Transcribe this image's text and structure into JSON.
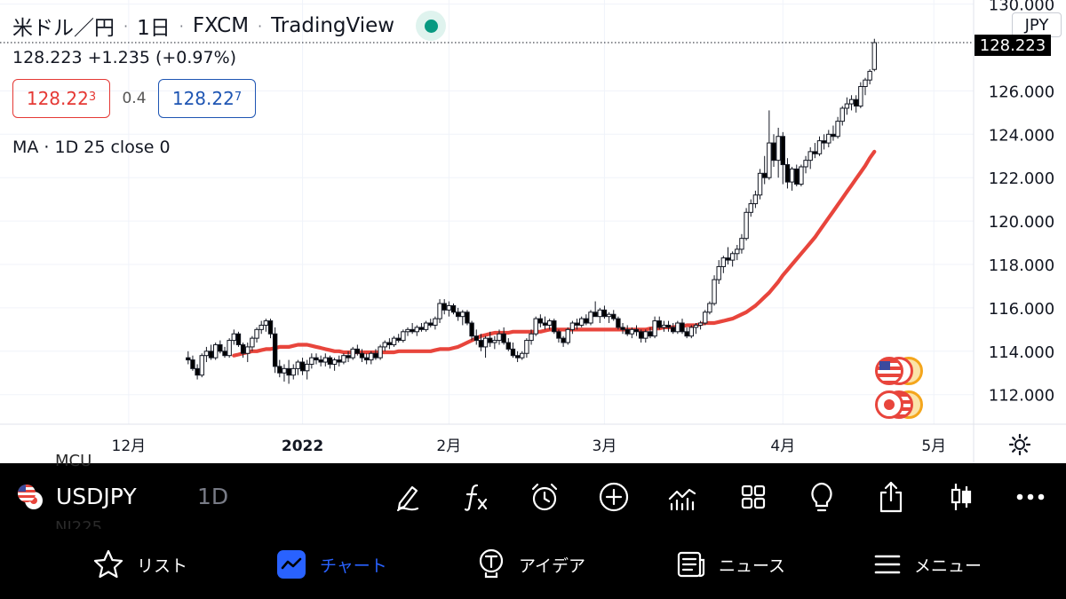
{
  "header": {
    "symbol_name": "米ドル／円",
    "interval": "1日",
    "exchange": "FXCM",
    "brand": "TradingView",
    "separator": "·",
    "price_line": "128.223  +1.235 (+0.97%)",
    "bid": {
      "main": "128.22",
      "small": "3"
    },
    "spread": "0.4",
    "ask": {
      "main": "128.22",
      "small": "7"
    },
    "ma_label": "MA · 1D 25 close 0",
    "unit": "JPY",
    "last_price_tag": "128.223"
  },
  "chart_data": {
    "type": "candlestick",
    "y_range": [
      110.6,
      130.0
    ],
    "y_ticks": [
      "130.000",
      "126.000",
      "124.000",
      "122.000",
      "120.000",
      "118.000",
      "116.000",
      "114.000",
      "112.000"
    ],
    "y_tick_values": [
      130,
      126,
      124,
      122,
      120,
      118,
      116,
      114,
      112
    ],
    "x_labels": [
      "12月",
      "2022",
      "2月",
      "3月",
      "4月",
      "5月"
    ],
    "x_label_bars": [
      27,
      65,
      97,
      131,
      170,
      203
    ],
    "last_price": 128.223,
    "bars_count": 191,
    "candles": [
      [
        113.7,
        114.0,
        113.4,
        113.6
      ],
      [
        113.6,
        113.8,
        113.1,
        113.2
      ],
      [
        113.2,
        113.4,
        112.7,
        112.9
      ],
      [
        112.9,
        113.9,
        112.8,
        113.8
      ],
      [
        113.8,
        114.2,
        113.5,
        114.0
      ],
      [
        114.0,
        114.3,
        113.6,
        113.7
      ],
      [
        113.7,
        114.4,
        113.6,
        114.3
      ],
      [
        114.3,
        114.5,
        113.9,
        114.0
      ],
      [
        114.0,
        114.2,
        113.7,
        113.8
      ],
      [
        113.8,
        114.6,
        113.7,
        114.5
      ],
      [
        114.5,
        115.0,
        114.3,
        114.8
      ],
      [
        114.8,
        114.9,
        114.2,
        114.3
      ],
      [
        114.3,
        114.4,
        113.7,
        113.9
      ],
      [
        113.9,
        114.4,
        113.5,
        114.2
      ],
      [
        114.2,
        114.7,
        114.0,
        114.6
      ],
      [
        114.6,
        115.1,
        114.4,
        115.0
      ],
      [
        115.0,
        115.4,
        114.8,
        115.2
      ],
      [
        115.2,
        115.5,
        114.9,
        115.4
      ],
      [
        115.4,
        115.5,
        114.6,
        114.8
      ],
      [
        114.8,
        115.1,
        113.0,
        113.3
      ],
      [
        113.3,
        113.6,
        112.8,
        113.0
      ],
      [
        113.0,
        113.4,
        112.6,
        113.2
      ],
      [
        113.2,
        113.6,
        112.5,
        112.9
      ],
      [
        112.9,
        113.4,
        112.7,
        113.2
      ],
      [
        113.2,
        113.6,
        112.9,
        113.5
      ],
      [
        113.5,
        113.7,
        112.9,
        113.1
      ],
      [
        113.1,
        113.6,
        112.7,
        113.4
      ],
      [
        113.4,
        113.9,
        113.2,
        113.7
      ],
      [
        113.7,
        113.9,
        113.4,
        113.6
      ],
      [
        113.6,
        113.8,
        113.3,
        113.5
      ],
      [
        113.5,
        113.9,
        113.3,
        113.7
      ],
      [
        113.7,
        113.8,
        113.2,
        113.4
      ],
      [
        113.4,
        113.7,
        113.1,
        113.6
      ],
      [
        113.6,
        113.8,
        113.3,
        113.5
      ],
      [
        113.5,
        113.9,
        113.4,
        113.8
      ],
      [
        113.8,
        114.0,
        113.5,
        113.7
      ],
      [
        113.7,
        114.2,
        113.6,
        114.1
      ],
      [
        114.1,
        114.3,
        113.8,
        113.9
      ],
      [
        113.9,
        114.1,
        113.5,
        113.7
      ],
      [
        113.7,
        113.9,
        113.4,
        113.6
      ],
      [
        113.6,
        114.0,
        113.4,
        113.9
      ],
      [
        113.9,
        114.1,
        113.6,
        113.7
      ],
      [
        113.7,
        114.3,
        113.6,
        114.2
      ],
      [
        114.2,
        114.5,
        114.0,
        114.4
      ],
      [
        114.4,
        114.6,
        114.1,
        114.3
      ],
      [
        114.3,
        114.7,
        114.2,
        114.6
      ],
      [
        114.6,
        114.8,
        114.4,
        114.5
      ],
      [
        114.5,
        115.0,
        114.4,
        114.9
      ],
      [
        114.9,
        115.1,
        114.7,
        115.0
      ],
      [
        115.0,
        115.3,
        114.8,
        114.9
      ],
      [
        114.9,
        115.2,
        114.7,
        115.1
      ],
      [
        115.1,
        115.3,
        114.9,
        115.0
      ],
      [
        115.0,
        115.4,
        114.9,
        115.3
      ],
      [
        115.3,
        115.5,
        115.1,
        115.2
      ],
      [
        115.2,
        115.6,
        115.0,
        115.5
      ],
      [
        115.5,
        116.4,
        115.3,
        116.2
      ],
      [
        116.2,
        116.4,
        115.7,
        115.9
      ],
      [
        115.9,
        116.3,
        115.6,
        116.1
      ],
      [
        116.1,
        116.2,
        115.7,
        115.8
      ],
      [
        115.8,
        116.0,
        115.4,
        115.6
      ],
      [
        115.6,
        115.9,
        115.2,
        115.8
      ],
      [
        115.8,
        115.9,
        115.2,
        115.3
      ],
      [
        115.3,
        115.4,
        114.5,
        114.7
      ],
      [
        114.7,
        115.0,
        114.3,
        114.5
      ],
      [
        114.5,
        114.8,
        114.0,
        114.2
      ],
      [
        114.2,
        114.7,
        113.7,
        114.6
      ],
      [
        114.6,
        114.9,
        114.2,
        114.4
      ],
      [
        114.4,
        114.7,
        114.1,
        114.5
      ],
      [
        114.5,
        115.0,
        114.3,
        114.8
      ],
      [
        114.8,
        115.1,
        114.3,
        114.4
      ],
      [
        114.4,
        114.6,
        114.0,
        114.1
      ],
      [
        114.1,
        114.4,
        113.7,
        113.8
      ],
      [
        113.8,
        114.0,
        113.5,
        113.7
      ],
      [
        113.7,
        114.0,
        113.6,
        113.9
      ],
      [
        113.9,
        114.6,
        113.7,
        114.5
      ],
      [
        114.5,
        115.0,
        114.3,
        114.8
      ],
      [
        114.8,
        115.6,
        114.7,
        115.5
      ],
      [
        115.5,
        115.7,
        115.1,
        115.3
      ],
      [
        115.3,
        115.6,
        115.0,
        115.2
      ],
      [
        115.2,
        115.5,
        115.0,
        115.4
      ],
      [
        115.4,
        115.5,
        114.8,
        114.9
      ],
      [
        114.9,
        115.0,
        114.4,
        114.6
      ],
      [
        114.6,
        114.7,
        114.2,
        114.4
      ],
      [
        114.4,
        115.1,
        114.3,
        115.0
      ],
      [
        115.0,
        115.4,
        114.8,
        115.3
      ],
      [
        115.3,
        115.5,
        115.0,
        115.2
      ],
      [
        115.2,
        115.6,
        115.1,
        115.5
      ],
      [
        115.5,
        115.7,
        115.2,
        115.3
      ],
      [
        115.3,
        115.9,
        115.2,
        115.8
      ],
      [
        115.8,
        116.3,
        115.6,
        115.6
      ],
      [
        115.6,
        116.0,
        115.3,
        115.9
      ],
      [
        115.9,
        116.1,
        115.5,
        115.6
      ],
      [
        115.6,
        115.8,
        115.3,
        115.7
      ],
      [
        115.7,
        115.9,
        115.4,
        115.5
      ],
      [
        115.5,
        115.6,
        115.0,
        115.1
      ],
      [
        115.1,
        115.3,
        114.8,
        115.0
      ],
      [
        115.0,
        115.2,
        114.7,
        114.8
      ],
      [
        114.8,
        115.1,
        114.6,
        115.0
      ],
      [
        115.0,
        115.2,
        114.7,
        114.9
      ],
      [
        114.9,
        115.0,
        114.4,
        114.6
      ],
      [
        114.6,
        115.0,
        114.4,
        114.9
      ],
      [
        114.9,
        115.1,
        114.6,
        114.7
      ],
      [
        114.7,
        115.6,
        114.6,
        115.4
      ],
      [
        115.4,
        115.6,
        115.0,
        115.1
      ],
      [
        115.1,
        115.4,
        114.9,
        115.2
      ],
      [
        115.2,
        115.4,
        114.9,
        115.1
      ],
      [
        115.1,
        115.3,
        114.8,
        114.9
      ],
      [
        114.9,
        115.4,
        114.8,
        115.3
      ],
      [
        115.3,
        115.5,
        114.8,
        114.9
      ],
      [
        114.9,
        115.1,
        114.6,
        114.7
      ],
      [
        114.7,
        115.2,
        114.6,
        115.1
      ],
      [
        115.1,
        115.3,
        114.8,
        115.2
      ],
      [
        115.2,
        115.4,
        115.0,
        115.3
      ],
      [
        115.3,
        115.9,
        115.2,
        115.8
      ],
      [
        115.8,
        116.3,
        115.7,
        116.2
      ],
      [
        116.2,
        117.5,
        116.1,
        117.3
      ],
      [
        117.3,
        118.2,
        117.1,
        117.9
      ],
      [
        117.9,
        118.4,
        117.6,
        118.3
      ],
      [
        118.3,
        118.8,
        118.0,
        118.2
      ],
      [
        118.2,
        118.6,
        117.9,
        118.5
      ],
      [
        118.5,
        118.9,
        118.2,
        118.7
      ],
      [
        118.7,
        119.4,
        118.5,
        119.2
      ],
      [
        119.2,
        120.6,
        119.1,
        120.4
      ],
      [
        120.4,
        121.0,
        120.2,
        120.8
      ],
      [
        120.8,
        121.4,
        120.6,
        121.2
      ],
      [
        121.2,
        122.4,
        121.0,
        122.2
      ],
      [
        122.2,
        123.0,
        121.7,
        122.0
      ],
      [
        122.0,
        125.1,
        121.9,
        123.6
      ],
      [
        123.6,
        124.0,
        122.5,
        122.8
      ],
      [
        122.8,
        124.3,
        122.0,
        123.9
      ],
      [
        123.9,
        124.1,
        121.7,
        122.6
      ],
      [
        122.6,
        122.9,
        121.5,
        121.8
      ],
      [
        121.8,
        122.5,
        121.4,
        122.4
      ],
      [
        122.4,
        122.6,
        121.6,
        121.7
      ],
      [
        121.7,
        122.6,
        121.6,
        122.5
      ],
      [
        122.5,
        123.0,
        122.2,
        122.8
      ],
      [
        122.8,
        123.4,
        122.4,
        123.2
      ],
      [
        123.2,
        123.6,
        122.9,
        123.1
      ],
      [
        123.1,
        123.9,
        123.0,
        123.7
      ],
      [
        123.7,
        124.0,
        123.3,
        123.6
      ],
      [
        123.6,
        124.2,
        123.4,
        124.0
      ],
      [
        124.0,
        124.4,
        123.7,
        123.9
      ],
      [
        123.9,
        124.8,
        123.8,
        124.6
      ],
      [
        124.6,
        125.3,
        124.4,
        125.2
      ],
      [
        125.2,
        125.7,
        124.9,
        125.4
      ],
      [
        125.4,
        125.8,
        125.1,
        125.6
      ],
      [
        125.6,
        125.8,
        125.0,
        125.3
      ],
      [
        125.3,
        126.4,
        125.2,
        126.2
      ],
      [
        126.2,
        126.6,
        125.8,
        126.5
      ],
      [
        126.5,
        127.0,
        126.3,
        126.9
      ],
      [
        126.988,
        128.4,
        126.9,
        128.223
      ]
    ],
    "ma25": [
      113.8,
      113.85,
      113.9,
      113.95,
      114.0,
      114.0,
      114.05,
      114.1,
      114.1,
      114.15,
      114.2,
      114.2,
      114.2,
      114.25,
      114.3,
      114.3,
      114.3,
      114.25,
      114.2,
      114.15,
      114.1,
      114.05,
      114.0,
      114.0,
      113.95,
      113.95,
      113.95,
      113.95,
      113.95,
      113.95,
      113.95,
      113.95,
      113.95,
      113.95,
      113.95,
      113.95,
      114.0,
      114.0,
      114.0,
      114.0,
      114.0,
      114.0,
      114.0,
      114.0,
      114.05,
      114.1,
      114.1,
      114.1,
      114.15,
      114.2,
      114.3,
      114.4,
      114.5,
      114.6,
      114.7,
      114.75,
      114.8,
      114.85,
      114.85,
      114.85,
      114.85,
      114.9,
      114.9,
      114.9,
      114.9,
      114.9,
      114.9,
      114.9,
      114.95,
      115.0,
      115.0,
      115.0,
      115.0,
      115.0,
      115.0,
      115.0,
      115.0,
      115.0,
      115.0,
      115.0,
      115.0,
      115.0,
      115.0,
      115.0,
      115.0,
      115.0,
      115.0,
      115.0,
      115.0,
      115.0,
      115.0,
      115.05,
      115.05,
      115.05,
      115.1,
      115.1,
      115.1,
      115.15,
      115.15,
      115.2,
      115.2,
      115.2,
      115.25,
      115.3,
      115.3,
      115.3,
      115.35,
      115.4,
      115.45,
      115.5,
      115.6,
      115.7,
      115.8,
      115.95,
      116.1,
      116.3,
      116.5,
      116.7,
      116.95,
      117.2,
      117.5,
      117.75,
      118.0,
      118.25,
      118.5,
      118.75,
      119.0,
      119.25,
      119.55,
      119.85,
      120.15,
      120.45,
      120.75,
      121.05,
      121.35,
      121.65,
      121.95,
      122.25,
      122.55,
      122.9,
      123.2
    ]
  },
  "toolbar": {
    "symbol": "USDJPY",
    "interval": "1D",
    "ghost_top": "MCU",
    "ghost_bottom": "NI225"
  },
  "tabs": [
    {
      "label": "リスト",
      "icon": "star-icon"
    },
    {
      "label": "チャート",
      "icon": "chart-icon"
    },
    {
      "label": "アイデア",
      "icon": "lightbulb-icon"
    },
    {
      "label": "ニュース",
      "icon": "news-icon"
    },
    {
      "label": "メニュー",
      "icon": "menu-icon"
    }
  ],
  "colors": {
    "up": "#ffffff",
    "down": "#000000",
    "ma": "#e8453c",
    "active_tab": "#2962ff",
    "live": "#089981"
  }
}
